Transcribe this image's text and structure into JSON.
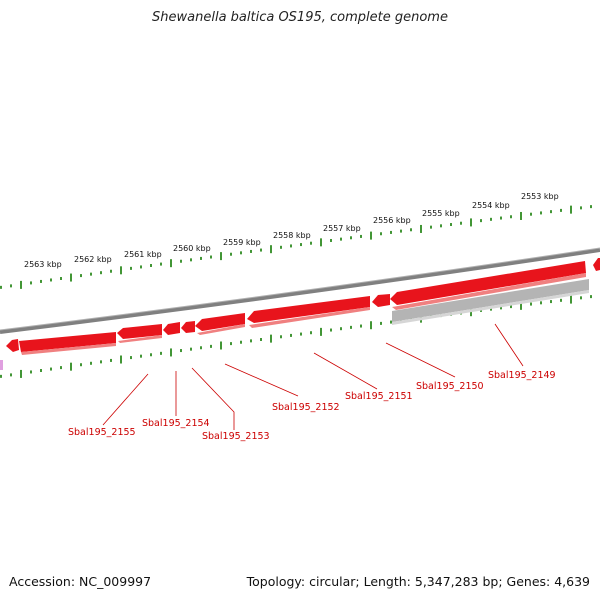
{
  "title": "Shewanella baltica OS195, complete genome",
  "footer": {
    "accession": "Accession: NC_009997",
    "stats": "Topology: circular; Length: 5,347,283 bp; Genes: 4,639"
  },
  "colors": {
    "gene": "#e8141c",
    "gene_shadow": "#f08080",
    "pseudo": "#b4b4b4",
    "backbone": "#808080",
    "tick": "#2d8a1f",
    "label": "#cc0000"
  },
  "ruler_labels": [
    "2563 kbp",
    "2562 kbp",
    "2561 kbp",
    "2560 kbp",
    "2559 kbp",
    "2558 kbp",
    "2557 kbp",
    "2556 kbp",
    "2555 kbp",
    "2554 kbp",
    "2553 kbp"
  ],
  "gene_labels": [
    "Sbal195_2155",
    "Sbal195_2154",
    "Sbal195_2153",
    "Sbal195_2152",
    "Sbal195_2151",
    "Sbal195_2150",
    "Sbal195_2149"
  ]
}
